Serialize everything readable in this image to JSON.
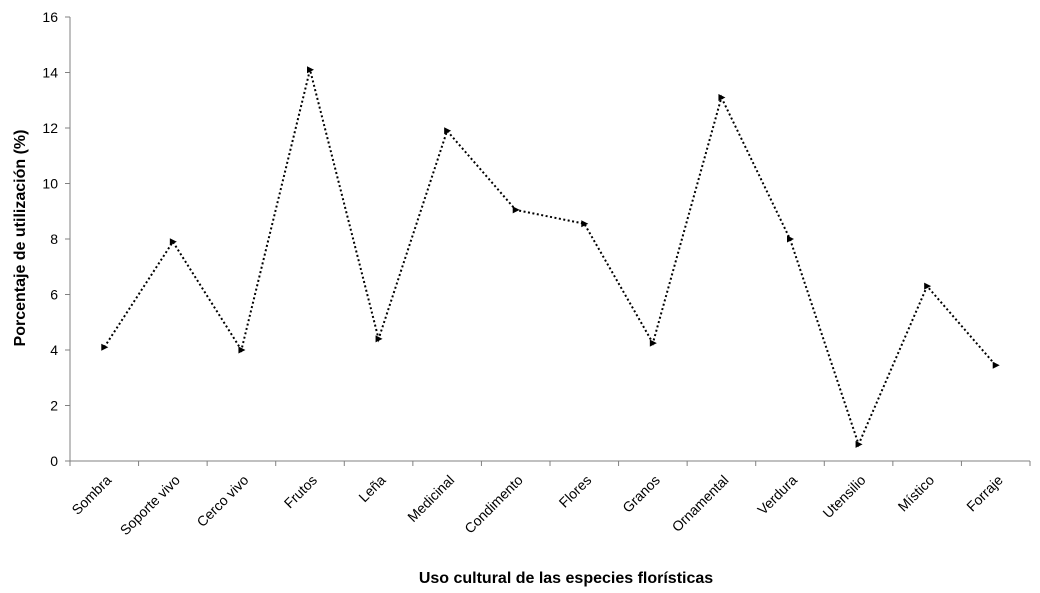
{
  "chart_data": {
    "type": "line",
    "title": "",
    "xlabel": "Uso cultural de las especies florísticas",
    "ylabel": "Porcentaje de utilización (%)",
    "ylim": [
      0,
      16
    ],
    "yticks": [
      "0",
      "2",
      "4",
      "6",
      "8",
      "10",
      "12",
      "14",
      "16"
    ],
    "grid": false,
    "legend": "none",
    "line_style": "dotted",
    "color": "#000000",
    "categories": [
      "Sombra",
      "Soporte vivo",
      "Cerco vivo",
      "Frutos",
      "Leña",
      "Medicinal",
      "Condimento",
      "Flores",
      "Granos",
      "Ornamental",
      "Verdura",
      "Utensilio",
      "Místico",
      "Forraje"
    ],
    "series": [
      {
        "values": [
          4.1,
          7.9,
          4.0,
          14.1,
          4.4,
          11.9,
          9.05,
          8.55,
          4.25,
          13.1,
          8.0,
          0.6,
          6.3,
          3.45
        ]
      }
    ]
  }
}
